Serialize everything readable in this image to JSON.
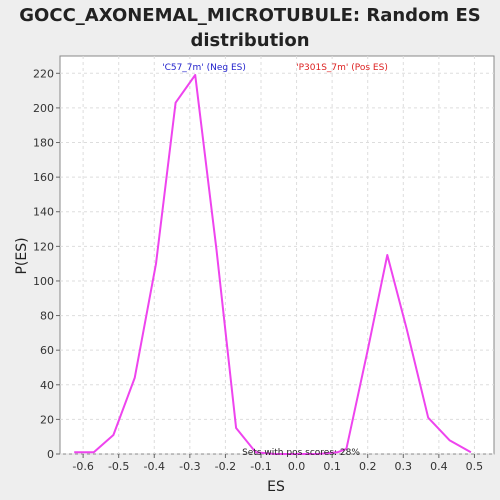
{
  "chart_data": {
    "type": "line",
    "title_line1": "GOCC_AXONEMAL_MICROTUBULE: Random ES",
    "title_line2": "distribution",
    "xlabel": "ES",
    "ylabel": "P(ES)",
    "xlim": [
      -0.665,
      0.555
    ],
    "ylim": [
      0,
      230
    ],
    "x_ticks": [
      -0.6,
      -0.5,
      -0.4,
      -0.3,
      -0.2,
      -0.1,
      0.0,
      0.1,
      0.2,
      0.3,
      0.4,
      0.5
    ],
    "x_tick_labels": [
      "-0.6",
      "-0.5",
      "-0.4",
      "-0.3",
      "-0.2",
      "-0.1",
      "0.0",
      "0.1",
      "0.2",
      "0.3",
      "0.4",
      "0.5"
    ],
    "y_ticks": [
      0,
      20,
      40,
      60,
      80,
      100,
      120,
      140,
      160,
      180,
      200,
      220
    ],
    "y_tick_labels": [
      "0",
      "20",
      "40",
      "60",
      "80",
      "100",
      "120",
      "140",
      "160",
      "180",
      "200",
      "220"
    ],
    "grid": true,
    "series": [
      {
        "color": "#ee44ee",
        "x": [
          -0.625,
          -0.57,
          -0.515,
          -0.455,
          -0.395,
          -0.34,
          -0.285,
          -0.225,
          -0.17,
          -0.115,
          -0.06,
          0.0,
          0.06,
          0.115,
          0.14,
          0.2,
          0.255,
          0.31,
          0.37,
          0.43,
          0.49
        ],
        "y": [
          1,
          1,
          11,
          44,
          110,
          203,
          219,
          118,
          15,
          1,
          0,
          0,
          0,
          1,
          3,
          60,
          115,
          72,
          21,
          8,
          1
        ]
      }
    ],
    "annotations": {
      "neg_label": "'C57_7m' (Neg ES)",
      "neg_color": "#2222cc",
      "pos_label": "'P301S_7m' (Pos ES)",
      "pos_color": "#dd2222",
      "footer": "Sets with pos scores: 28%"
    }
  }
}
